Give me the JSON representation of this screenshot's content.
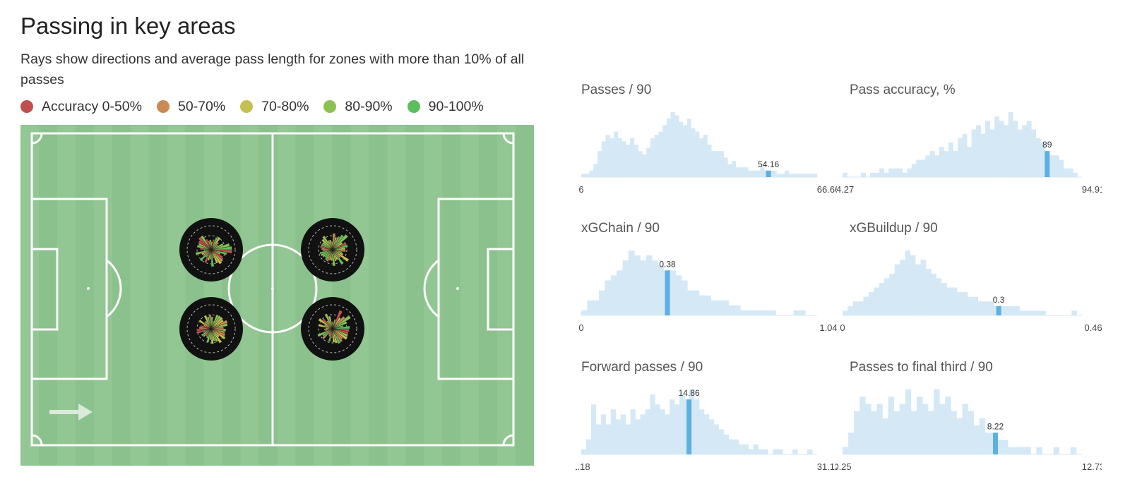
{
  "header": {
    "title": "Passing in key areas",
    "subtitle": "Rays show directions and average pass length for zones with more than 10% of all passes"
  },
  "legend": [
    {
      "label": "Accuracy 0-50%",
      "color": "#c0504d"
    },
    {
      "label": "50-70%",
      "color": "#c98a55"
    },
    {
      "label": "70-80%",
      "color": "#c4c052"
    },
    {
      "label": "80-90%",
      "color": "#8cc052"
    },
    {
      "label": "90-100%",
      "color": "#5cbf5c"
    }
  ],
  "colors": {
    "pitch_light": "#92c693",
    "pitch_dark": "#8bc18c",
    "pitch_lines": "#ffffff",
    "zone_bg": "#111111",
    "hist_fill": "#d5e8f5",
    "hist_marker": "#5cb0e2",
    "direction_arrow": "#d9ead9"
  },
  "pitch": {
    "attack_direction": "right",
    "zones": [
      {
        "id": "left-top",
        "position": "left of halfway, upper central"
      },
      {
        "id": "left-bottom",
        "position": "left of halfway, lower central"
      },
      {
        "id": "right-top",
        "position": "right of halfway, upper central"
      },
      {
        "id": "right-bottom",
        "position": "right of halfway, lower central"
      }
    ]
  },
  "chart_data": [
    {
      "type": "bar",
      "title": "Passes / 90",
      "xlim": [
        6,
        66.66
      ],
      "tick_labels": [
        "6",
        "66.66"
      ],
      "marker": {
        "value": 54.16,
        "label": "54.16"
      },
      "values": [
        1,
        1,
        2,
        4,
        8,
        11,
        13,
        12,
        14,
        12,
        11,
        10,
        12,
        10,
        8,
        7,
        9,
        12,
        13,
        14,
        16,
        18,
        20,
        19,
        17,
        16,
        18,
        15,
        14,
        12,
        13,
        10,
        8,
        8,
        8,
        6,
        4,
        5,
        3,
        3,
        3,
        2,
        2,
        2,
        3,
        2,
        2,
        2,
        1,
        1,
        2,
        1,
        1,
        1,
        1,
        1,
        1,
        1
      ]
    },
    {
      "type": "bar",
      "title": "Pass accuracy, %",
      "xlim": [
        54.27,
        94.91
      ],
      "tick_labels": [
        "54.27",
        "94.91"
      ],
      "marker": {
        "value": 89,
        "label": "89"
      },
      "values": [
        1,
        0,
        0,
        0,
        1,
        0,
        1,
        1,
        2,
        1,
        2,
        2,
        2,
        1,
        2,
        3,
        4,
        4,
        5,
        6,
        5,
        7,
        6,
        8,
        6,
        9,
        10,
        7,
        11,
        12,
        10,
        13,
        11,
        14,
        13,
        12,
        15,
        13,
        11,
        12,
        13,
        11,
        9,
        8,
        6,
        5,
        5,
        4,
        2,
        2,
        1,
        0
      ]
    },
    {
      "type": "bar",
      "title": "xGChain / 90",
      "xlim": [
        0,
        1.04
      ],
      "tick_labels": [
        "0",
        "1.04"
      ],
      "marker": {
        "value": 0.38,
        "label": "0.38"
      },
      "values": [
        1,
        3,
        3,
        5,
        7,
        8,
        9,
        11,
        13,
        12,
        11,
        12,
        11,
        10,
        9,
        9,
        8,
        7,
        5,
        5,
        4,
        4,
        3,
        3,
        3,
        2,
        2,
        1,
        1,
        1,
        1,
        1,
        1,
        0,
        0,
        0,
        1,
        1,
        0,
        0
      ]
    },
    {
      "type": "bar",
      "title": "xGBuildup / 90",
      "xlim": [
        0,
        0.46
      ],
      "tick_labels": [
        "0",
        "0.46"
      ],
      "marker": {
        "value": 0.3,
        "label": "0.3"
      },
      "values": [
        1,
        2,
        3,
        3,
        4,
        5,
        6,
        7,
        8,
        9,
        11,
        12,
        14,
        13,
        11,
        12,
        10,
        9,
        8,
        7,
        6,
        6,
        5,
        5,
        4,
        4,
        3,
        3,
        3,
        2,
        2,
        2,
        2,
        2,
        1,
        1,
        1,
        1,
        1,
        0,
        0,
        0,
        0,
        0,
        1,
        0
      ]
    },
    {
      "type": "bar",
      "title": "Forward passes / 90",
      "xlim": [
        1.18,
        31.12
      ],
      "tick_labels": [
        "1.18",
        "31.12"
      ],
      "marker": {
        "value": 14.86,
        "label": "14.86"
      },
      "values": [
        1,
        3,
        10,
        6,
        8,
        6,
        9,
        7,
        8,
        6,
        9,
        7,
        8,
        9,
        12,
        10,
        9,
        8,
        11,
        10,
        12,
        11,
        13,
        11,
        9,
        8,
        7,
        6,
        5,
        4,
        3,
        3,
        2,
        2,
        1,
        2,
        1,
        1,
        0,
        1,
        1,
        0,
        0,
        1,
        0,
        0,
        1,
        0
      ]
    },
    {
      "type": "bar",
      "title": "Passes to final third / 90",
      "xlim": [
        0.25,
        12.73
      ],
      "tick_labels": [
        "0.25",
        "12.73"
      ],
      "marker": {
        "value": 8.22,
        "label": "8.22"
      },
      "values": [
        1,
        3,
        6,
        8,
        7,
        6,
        7,
        5,
        8,
        6,
        7,
        9,
        6,
        8,
        7,
        6,
        9,
        7,
        8,
        6,
        5,
        7,
        6,
        4,
        5,
        3,
        3,
        2,
        2,
        1,
        1,
        1,
        1,
        0,
        1,
        0,
        0,
        1,
        0,
        0,
        1,
        0
      ]
    }
  ]
}
